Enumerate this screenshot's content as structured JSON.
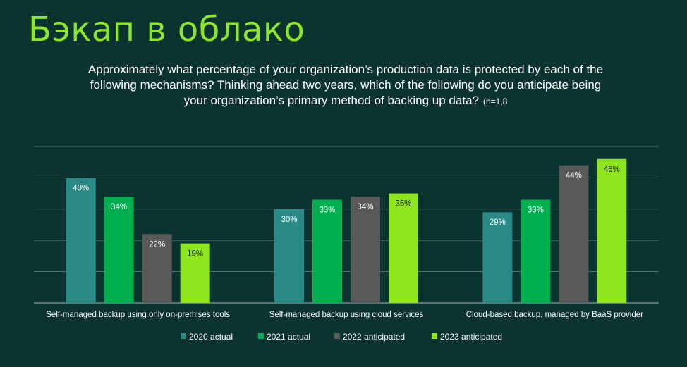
{
  "title": "Бэкап в облако",
  "question": "Approximately what percentage of your organization’s production data is protected by each of the following mechanisms?  Thinking ahead two years, which of the following do you anticipate being your organization’s primary method of backing up data?",
  "sample_note": "(n=1,8",
  "colors": {
    "background": "#0b3430",
    "title": "#8ee62a",
    "gridline": "#b5c4c2"
  },
  "chart_data": {
    "type": "bar",
    "categories": [
      "Self-managed backup using only on-premises tools",
      "Self-managed backup using cloud services",
      "Cloud-based backup, managed by BaaS provider"
    ],
    "series": [
      {
        "name": "2020 actual",
        "color": "#2a8a85",
        "values": [
          40,
          30,
          29
        ]
      },
      {
        "name": "2021 actual",
        "color": "#00b050",
        "values": [
          34,
          33,
          33
        ]
      },
      {
        "name": "2022 anticipated",
        "color": "#595959",
        "values": [
          22,
          34,
          44
        ]
      },
      {
        "name": "2023 anticipated",
        "color": "#8ee61c",
        "values": [
          19,
          35,
          46
        ]
      }
    ],
    "value_suffix": "%",
    "ylim": [
      0,
      50
    ],
    "grid": true,
    "legend": "bottom"
  }
}
